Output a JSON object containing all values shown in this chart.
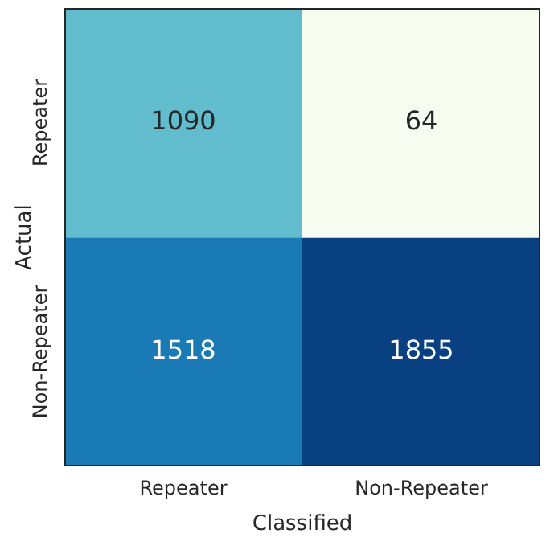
{
  "chart_data": {
    "type": "heatmap",
    "xlabel": "Classified",
    "ylabel": "Actual",
    "categories": [
      "Repeater",
      "Non-Repeater"
    ],
    "y_categories": [
      "Repeater",
      "Non-Repeater"
    ],
    "data_labels": true,
    "cells": [
      [
        1090,
        64
      ],
      [
        1518,
        1855
      ]
    ]
  }
}
